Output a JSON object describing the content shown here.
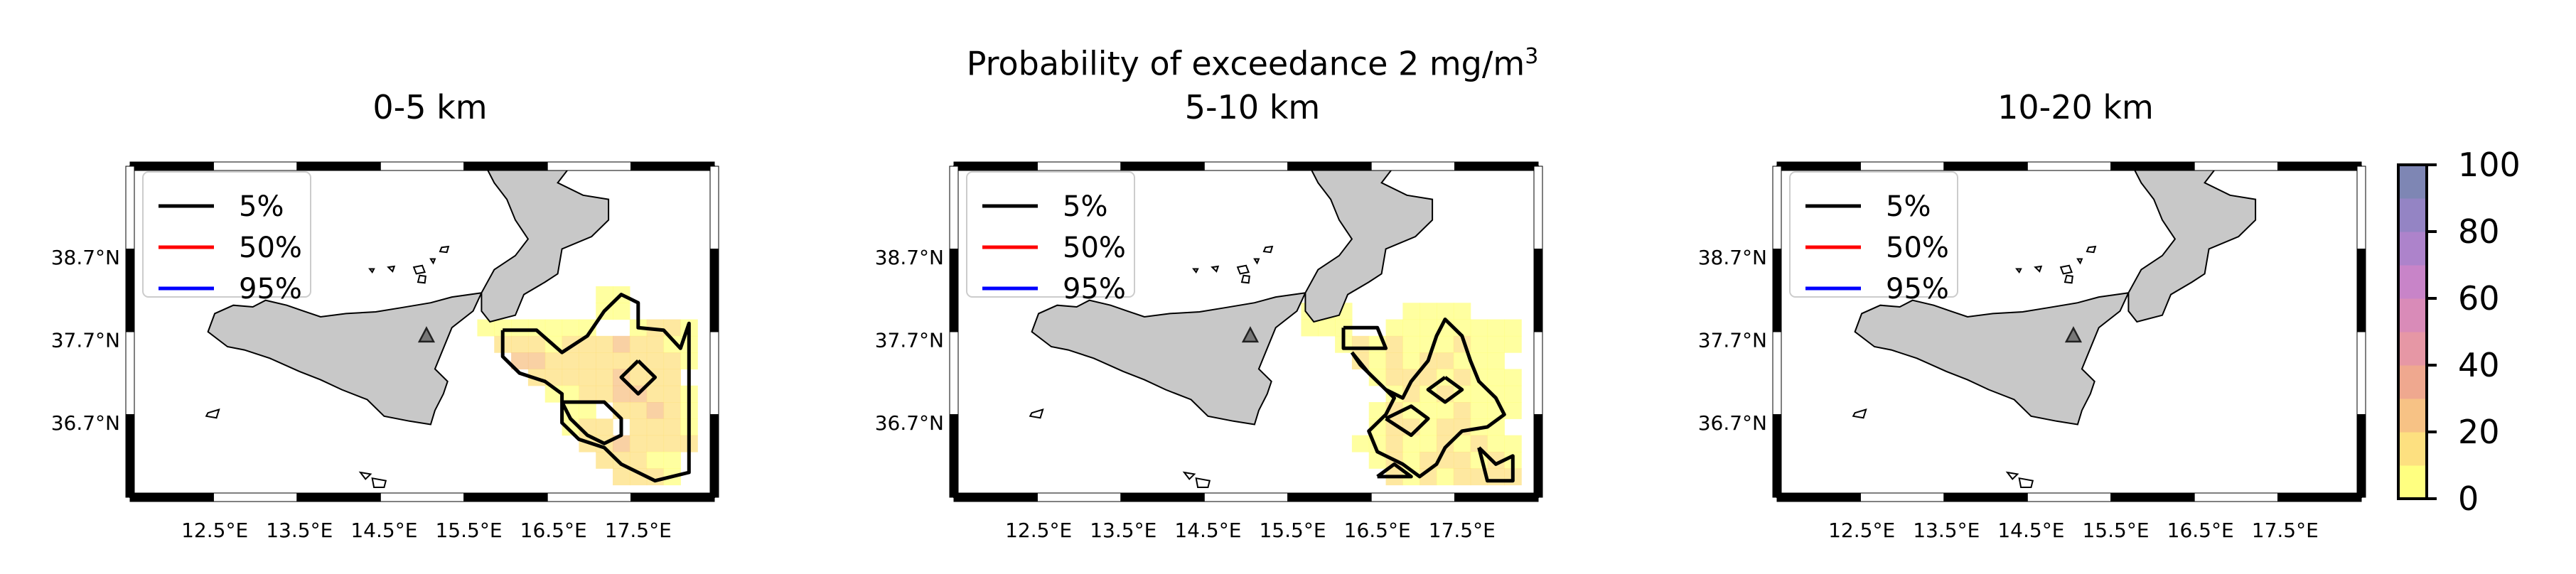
{
  "figure": {
    "suptitle_prefix": "Probability of exceedance 2 mg/m",
    "suptitle_sup": "3"
  },
  "chart_data": [
    {
      "type": "heatmap",
      "title": "0-5 km",
      "x_ticks": [
        "12.5°E",
        "13.5°E",
        "14.5°E",
        "15.5°E",
        "16.5°E",
        "17.5°E"
      ],
      "y_ticks": [
        "38.7°N",
        "37.7°N",
        "36.7°N"
      ],
      "legend": [
        "5%",
        "50%",
        "95%"
      ],
      "grid": false,
      "volcano_marker": {
        "lon": 15.0,
        "lat": 37.75
      },
      "cells": [
        [
          15.7,
          37.85,
          5
        ],
        [
          15.9,
          37.85,
          8
        ],
        [
          16.1,
          37.85,
          6
        ],
        [
          16.3,
          37.85,
          5
        ],
        [
          16.5,
          37.85,
          6
        ],
        [
          16.7,
          37.85,
          8
        ],
        [
          16.9,
          37.85,
          6
        ],
        [
          17.1,
          38.05,
          8
        ],
        [
          17.3,
          38.05,
          6
        ],
        [
          17.1,
          38.25,
          5
        ],
        [
          17.3,
          38.25,
          6
        ],
        [
          17.5,
          37.85,
          8
        ],
        [
          17.7,
          37.85,
          10
        ],
        [
          17.9,
          37.85,
          12
        ],
        [
          18.1,
          37.85,
          8
        ],
        [
          15.9,
          37.65,
          10
        ],
        [
          16.1,
          37.65,
          15
        ],
        [
          16.3,
          37.65,
          12
        ],
        [
          16.5,
          37.65,
          8
        ],
        [
          16.7,
          37.65,
          10
        ],
        [
          16.9,
          37.65,
          12
        ],
        [
          17.1,
          37.65,
          14
        ],
        [
          17.3,
          37.65,
          22
        ],
        [
          17.5,
          37.65,
          12
        ],
        [
          17.7,
          37.65,
          10
        ],
        [
          17.9,
          37.65,
          8
        ],
        [
          18.1,
          37.65,
          6
        ],
        [
          16.1,
          37.45,
          20
        ],
        [
          16.3,
          37.45,
          25
        ],
        [
          16.5,
          37.45,
          15
        ],
        [
          16.7,
          37.45,
          12
        ],
        [
          16.9,
          37.45,
          14
        ],
        [
          17.1,
          37.45,
          16
        ],
        [
          17.3,
          37.45,
          18
        ],
        [
          17.5,
          37.45,
          14
        ],
        [
          17.7,
          37.45,
          12
        ],
        [
          17.9,
          37.45,
          10
        ],
        [
          18.1,
          37.45,
          8
        ],
        [
          16.3,
          37.25,
          15
        ],
        [
          16.5,
          37.25,
          10
        ],
        [
          16.7,
          37.25,
          12
        ],
        [
          16.9,
          37.25,
          10
        ],
        [
          17.1,
          37.25,
          12
        ],
        [
          17.3,
          37.25,
          20
        ],
        [
          17.5,
          37.25,
          15
        ],
        [
          17.7,
          37.25,
          12
        ],
        [
          17.9,
          37.25,
          10
        ],
        [
          16.5,
          37.05,
          8
        ],
        [
          16.7,
          37.05,
          6
        ],
        [
          16.9,
          37.05,
          10
        ],
        [
          17.1,
          37.05,
          18
        ],
        [
          17.3,
          37.05,
          24
        ],
        [
          17.5,
          37.05,
          20
        ],
        [
          17.7,
          37.05,
          14
        ],
        [
          17.9,
          37.05,
          10
        ],
        [
          18.1,
          37.05,
          6
        ],
        [
          16.7,
          36.85,
          6
        ],
        [
          16.9,
          36.85,
          8
        ],
        [
          17.3,
          36.85,
          14
        ],
        [
          17.5,
          36.85,
          18
        ],
        [
          17.7,
          36.85,
          22
        ],
        [
          17.9,
          36.85,
          14
        ],
        [
          18.1,
          36.85,
          8
        ],
        [
          16.7,
          36.65,
          8
        ],
        [
          16.9,
          36.65,
          10
        ],
        [
          17.1,
          36.65,
          12
        ],
        [
          17.5,
          36.65,
          12
        ],
        [
          17.7,
          36.65,
          16
        ],
        [
          17.9,
          36.65,
          12
        ],
        [
          18.1,
          36.65,
          6
        ],
        [
          16.9,
          36.45,
          10
        ],
        [
          17.1,
          36.45,
          14
        ],
        [
          17.3,
          36.45,
          20
        ],
        [
          17.5,
          36.45,
          15
        ],
        [
          17.7,
          36.45,
          10
        ],
        [
          17.9,
          36.45,
          14
        ],
        [
          18.1,
          36.45,
          10
        ],
        [
          17.1,
          36.25,
          12
        ],
        [
          17.3,
          36.25,
          18
        ],
        [
          17.5,
          36.25,
          12
        ],
        [
          17.7,
          36.25,
          8
        ],
        [
          17.9,
          36.25,
          6
        ],
        [
          17.3,
          36.05,
          10
        ],
        [
          17.5,
          36.05,
          14
        ],
        [
          17.7,
          36.05,
          10
        ],
        [
          17.9,
          36.05,
          8
        ]
      ],
      "contour_5pct": [
        [
          [
            15.9,
            37.82
          ],
          [
            16.3,
            37.82
          ],
          [
            16.6,
            37.55
          ],
          [
            16.9,
            37.75
          ],
          [
            17.1,
            38.05
          ],
          [
            17.3,
            38.25
          ],
          [
            17.5,
            38.15
          ],
          [
            17.5,
            37.85
          ],
          [
            17.8,
            37.82
          ],
          [
            18.0,
            37.6
          ],
          [
            18.1,
            37.9
          ],
          [
            18.1,
            36.1
          ],
          [
            17.7,
            36.0
          ],
          [
            17.3,
            36.2
          ],
          [
            17.1,
            36.4
          ],
          [
            16.8,
            36.5
          ],
          [
            16.6,
            36.7
          ],
          [
            16.6,
            37.05
          ],
          [
            16.4,
            37.2
          ],
          [
            16.1,
            37.3
          ],
          [
            15.9,
            37.5
          ],
          [
            15.9,
            37.82
          ]
        ],
        [
          [
            16.6,
            36.95
          ],
          [
            17.1,
            36.95
          ],
          [
            17.3,
            36.75
          ],
          [
            17.3,
            36.55
          ],
          [
            17.1,
            36.45
          ],
          [
            16.9,
            36.55
          ],
          [
            16.7,
            36.75
          ],
          [
            16.6,
            36.95
          ]
        ],
        [
          [
            17.5,
            37.45
          ],
          [
            17.7,
            37.25
          ],
          [
            17.5,
            37.05
          ],
          [
            17.3,
            37.25
          ],
          [
            17.5,
            37.45
          ]
        ]
      ]
    },
    {
      "type": "heatmap",
      "title": "5-10 km",
      "x_ticks": [
        "12.5°E",
        "13.5°E",
        "14.5°E",
        "15.5°E",
        "16.5°E",
        "17.5°E"
      ],
      "y_ticks": [
        "38.7°N",
        "37.7°N",
        "36.7°N"
      ],
      "legend": [
        "5%",
        "50%",
        "95%"
      ],
      "grid": false,
      "volcano_marker": {
        "lon": 15.0,
        "lat": 37.75
      },
      "cells": [
        [
          15.7,
          38.05,
          5
        ],
        [
          15.9,
          38.05,
          6
        ],
        [
          16.1,
          38.05,
          5
        ],
        [
          15.7,
          37.85,
          5
        ],
        [
          15.9,
          37.85,
          6
        ],
        [
          16.1,
          37.85,
          5
        ],
        [
          16.9,
          38.05,
          5
        ],
        [
          17.1,
          38.05,
          6
        ],
        [
          17.3,
          38.05,
          5
        ],
        [
          17.5,
          38.05,
          5
        ],
        [
          16.7,
          37.85,
          6
        ],
        [
          16.9,
          37.85,
          8
        ],
        [
          17.1,
          37.85,
          6
        ],
        [
          17.3,
          37.85,
          6
        ],
        [
          17.5,
          37.85,
          8
        ],
        [
          17.7,
          37.85,
          6
        ],
        [
          17.9,
          37.85,
          5
        ],
        [
          18.1,
          37.85,
          5
        ],
        [
          16.1,
          37.65,
          8
        ],
        [
          16.3,
          37.65,
          10
        ],
        [
          16.5,
          37.65,
          8
        ],
        [
          16.7,
          37.65,
          10
        ],
        [
          16.9,
          37.65,
          8
        ],
        [
          17.1,
          37.65,
          6
        ],
        [
          17.3,
          37.65,
          8
        ],
        [
          17.5,
          37.65,
          10
        ],
        [
          17.7,
          37.65,
          8
        ],
        [
          17.9,
          37.65,
          6
        ],
        [
          18.1,
          37.65,
          5
        ],
        [
          16.3,
          37.45,
          10
        ],
        [
          16.5,
          37.45,
          8
        ],
        [
          16.7,
          37.45,
          10
        ],
        [
          16.9,
          37.45,
          8
        ],
        [
          17.1,
          37.45,
          10
        ],
        [
          17.3,
          37.45,
          12
        ],
        [
          17.5,
          37.45,
          8
        ],
        [
          17.7,
          37.45,
          6
        ],
        [
          17.9,
          37.45,
          5
        ],
        [
          16.5,
          37.25,
          8
        ],
        [
          16.7,
          37.25,
          10
        ],
        [
          16.9,
          37.25,
          12
        ],
        [
          17.1,
          37.25,
          10
        ],
        [
          17.3,
          37.25,
          8
        ],
        [
          17.5,
          37.25,
          10
        ],
        [
          17.7,
          37.25,
          8
        ],
        [
          17.9,
          37.25,
          6
        ],
        [
          18.1,
          37.25,
          5
        ],
        [
          16.7,
          37.05,
          8
        ],
        [
          16.9,
          37.05,
          10
        ],
        [
          17.1,
          37.05,
          8
        ],
        [
          17.3,
          37.05,
          10
        ],
        [
          17.5,
          37.05,
          8
        ],
        [
          17.7,
          37.05,
          6
        ],
        [
          17.9,
          37.05,
          8
        ],
        [
          18.1,
          37.05,
          5
        ],
        [
          16.5,
          36.85,
          6
        ],
        [
          16.7,
          36.85,
          10
        ],
        [
          16.9,
          36.85,
          8
        ],
        [
          17.1,
          36.85,
          6
        ],
        [
          17.3,
          36.85,
          8
        ],
        [
          17.5,
          36.85,
          10
        ],
        [
          17.7,
          36.85,
          8
        ],
        [
          17.9,
          36.85,
          6
        ],
        [
          18.1,
          36.85,
          5
        ],
        [
          16.5,
          36.65,
          8
        ],
        [
          16.7,
          36.65,
          10
        ],
        [
          16.9,
          36.65,
          12
        ],
        [
          17.1,
          36.65,
          8
        ],
        [
          17.3,
          36.65,
          10
        ],
        [
          17.5,
          36.65,
          12
        ],
        [
          17.7,
          36.65,
          8
        ],
        [
          17.9,
          36.65,
          6
        ],
        [
          16.3,
          36.45,
          6
        ],
        [
          16.5,
          36.45,
          8
        ],
        [
          16.7,
          36.45,
          10
        ],
        [
          16.9,
          36.45,
          8
        ],
        [
          17.1,
          36.45,
          6
        ],
        [
          17.3,
          36.45,
          10
        ],
        [
          17.5,
          36.45,
          8
        ],
        [
          17.7,
          36.45,
          10
        ],
        [
          17.9,
          36.45,
          8
        ],
        [
          18.1,
          36.45,
          6
        ],
        [
          16.5,
          36.25,
          8
        ],
        [
          16.7,
          36.25,
          10
        ],
        [
          16.9,
          36.25,
          8
        ],
        [
          17.1,
          36.25,
          10
        ],
        [
          17.3,
          36.25,
          12
        ],
        [
          17.5,
          36.25,
          10
        ],
        [
          17.7,
          36.25,
          8
        ],
        [
          17.9,
          36.25,
          10
        ],
        [
          18.1,
          36.25,
          8
        ],
        [
          16.7,
          36.05,
          10
        ],
        [
          16.9,
          36.05,
          8
        ],
        [
          17.1,
          36.05,
          10
        ],
        [
          17.3,
          36.05,
          8
        ],
        [
          17.5,
          36.05,
          12
        ],
        [
          17.7,
          36.05,
          10
        ],
        [
          17.9,
          36.05,
          12
        ],
        [
          18.1,
          36.05,
          10
        ]
      ],
      "contour_5pct": [
        [
          [
            16.1,
            37.85
          ],
          [
            16.5,
            37.85
          ],
          [
            16.6,
            37.6
          ],
          [
            16.1,
            37.6
          ],
          [
            16.1,
            37.85
          ]
        ],
        [
          [
            16.2,
            37.55
          ],
          [
            16.4,
            37.3
          ],
          [
            16.6,
            37.1
          ],
          [
            16.8,
            37.0
          ],
          [
            16.9,
            37.2
          ],
          [
            17.1,
            37.45
          ],
          [
            17.2,
            37.75
          ],
          [
            17.3,
            37.95
          ],
          [
            17.5,
            37.75
          ],
          [
            17.6,
            37.45
          ],
          [
            17.7,
            37.2
          ],
          [
            17.9,
            37.0
          ],
          [
            18.0,
            36.8
          ],
          [
            17.8,
            36.65
          ],
          [
            17.5,
            36.6
          ],
          [
            17.3,
            36.4
          ],
          [
            17.2,
            36.2
          ],
          [
            17.0,
            36.05
          ],
          [
            16.8,
            36.2
          ],
          [
            16.5,
            36.35
          ],
          [
            16.4,
            36.6
          ],
          [
            16.6,
            36.8
          ],
          [
            16.7,
            37.0
          ],
          [
            16.5,
            37.2
          ],
          [
            16.3,
            37.4
          ],
          [
            16.2,
            37.55
          ]
        ],
        [
          [
            16.6,
            36.75
          ],
          [
            16.9,
            36.9
          ],
          [
            17.1,
            36.75
          ],
          [
            16.9,
            36.55
          ],
          [
            16.6,
            36.75
          ]
        ],
        [
          [
            17.3,
            37.25
          ],
          [
            17.5,
            37.1
          ],
          [
            17.3,
            36.95
          ],
          [
            17.1,
            37.1
          ],
          [
            17.3,
            37.25
          ]
        ],
        [
          [
            17.7,
            36.4
          ],
          [
            17.9,
            36.2
          ],
          [
            18.1,
            36.3
          ],
          [
            18.1,
            36.0
          ],
          [
            17.8,
            36.0
          ],
          [
            17.7,
            36.4
          ]
        ],
        [
          [
            16.5,
            36.05
          ],
          [
            16.7,
            36.2
          ],
          [
            16.9,
            36.05
          ],
          [
            16.5,
            36.05
          ]
        ]
      ]
    },
    {
      "type": "heatmap",
      "title": "10-20 km",
      "x_ticks": [
        "12.5°E",
        "13.5°E",
        "14.5°E",
        "15.5°E",
        "16.5°E",
        "17.5°E"
      ],
      "y_ticks": [
        "38.7°N",
        "37.7°N",
        "36.7°N"
      ],
      "legend": [
        "5%",
        "50%",
        "95%"
      ],
      "grid": false,
      "volcano_marker": {
        "lon": 15.0,
        "lat": 37.75
      },
      "cells": [],
      "contour_5pct": []
    }
  ],
  "legend_colors": {
    "5%": "#000000",
    "50%": "#ff0000",
    "95%": "#0000ff"
  },
  "colorbar": {
    "ticks": [
      "0",
      "20",
      "40",
      "60",
      "80",
      "100"
    ],
    "colors": [
      "#ffff80",
      "#fde080",
      "#f7c285",
      "#efa88f",
      "#e697a5",
      "#d98bb8",
      "#c884c8",
      "#ad83cb",
      "#9484c4",
      "#7e86b4"
    ]
  },
  "map_colors": {
    "land": "#c8c8c8",
    "coast": "#000000",
    "frame_dark": "#000000",
    "frame_light": "#ffffff"
  }
}
